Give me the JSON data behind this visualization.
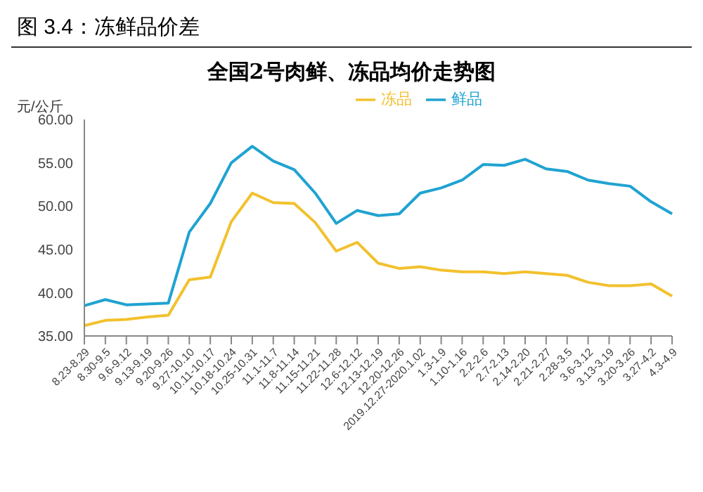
{
  "chart_data": {
    "type": "line",
    "title": "图 3.4：冻鲜品价差",
    "subtitle": "全国2号肉鲜、冻品均价走势图",
    "ylabel": "元/公斤",
    "categories": [
      "8.23-8.29",
      "8.30-9.5",
      "9.6-9.12",
      "9.13-9.19",
      "9.20-9.26",
      "9.27-10.10",
      "10.11-10.17",
      "10.18-10.24",
      "10.25-10.31",
      "11.1-11.7",
      "11.8-11.14",
      "11.15-11.21",
      "11.22-11.28",
      "12.6-12.12",
      "12.13-12.19",
      "12.20-12.26",
      "2019.12.27-2020.1.02",
      "1.3-1.9",
      "1.10-1.16",
      "2.2-2.6",
      "2.7-2.13",
      "2.14-2.20",
      "2.21-2.27",
      "2.28-3.5",
      "3.6-3.12",
      "3.13-3.19",
      "3.20-3.26",
      "3.27-4.2",
      "4.3-4.9"
    ],
    "series": [
      {
        "name": "鲜品",
        "color": "#1fa3d1",
        "values": [
          38.5,
          39.2,
          38.6,
          38.7,
          38.8,
          47,
          50.3,
          55,
          56.9,
          55.2,
          54.2,
          51.5,
          48,
          49.5,
          48.9,
          49.1,
          51.5,
          52.1,
          53,
          54.8,
          54.7,
          55.4,
          54.3,
          54,
          53,
          52.6,
          52.3,
          50.5,
          49.1
        ]
      },
      {
        "name": "冻品",
        "color": "#f2c12e",
        "values": [
          36.2,
          36.8,
          36.9,
          37.2,
          37.4,
          41.5,
          41.8,
          48.2,
          51.5,
          50.4,
          50.3,
          48.1,
          44.8,
          45.8,
          43.4,
          42.8,
          43,
          42.6,
          42.4,
          42.4,
          42.2,
          42.4,
          42.2,
          42,
          41.2,
          40.8,
          40.8,
          41,
          39.6
        ]
      }
    ],
    "ylim": [
      35,
      60
    ],
    "yticks": [
      {
        "value": 35,
        "label": "35.00"
      },
      {
        "value": 40,
        "label": "40.00"
      },
      {
        "value": 45,
        "label": "45.00"
      },
      {
        "value": 50,
        "label": "50.00"
      },
      {
        "value": 55,
        "label": "55.00"
      },
      {
        "value": 60,
        "label": "60.00"
      }
    ],
    "grid": false,
    "legend": "top",
    "marker": "none",
    "line_style": "solid"
  }
}
